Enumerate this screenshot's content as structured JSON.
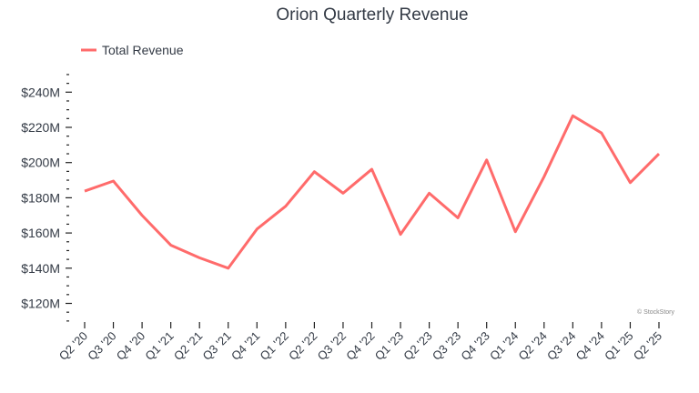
{
  "chart_data": {
    "type": "line",
    "title": "Orion Quarterly Revenue",
    "xlabel": "",
    "ylabel": "",
    "categories": [
      "Q2 '20",
      "Q3 '20",
      "Q4 '20",
      "Q1 '21",
      "Q2 '21",
      "Q3 '21",
      "Q4 '21",
      "Q1 '22",
      "Q2 '22",
      "Q3 '22",
      "Q4 '22",
      "Q1 '23",
      "Q2 '23",
      "Q3 '23",
      "Q4 '23",
      "Q1 '24",
      "Q2 '24",
      "Q3 '24",
      "Q4 '24",
      "Q1 '25",
      "Q2 '25"
    ],
    "series": [
      {
        "name": "Total Revenue",
        "color": "#ff6b6b",
        "values": [
          183.8,
          189.5,
          170.0,
          153.1,
          145.9,
          140.0,
          162.2,
          175.2,
          194.8,
          182.6,
          196.2,
          159.2,
          182.6,
          168.6,
          201.5,
          160.7,
          192.0,
          226.6,
          216.8,
          188.6,
          205.0
        ]
      }
    ],
    "yticks": [
      120,
      140,
      160,
      180,
      200,
      220,
      240
    ],
    "ytick_labels": [
      "$120M",
      "$140M",
      "$160M",
      "$180M",
      "$200M",
      "$220M",
      "$240M"
    ],
    "ylim": [
      110,
      250
    ],
    "grid": false,
    "legend": "top-left",
    "watermark": "© StockStory"
  }
}
